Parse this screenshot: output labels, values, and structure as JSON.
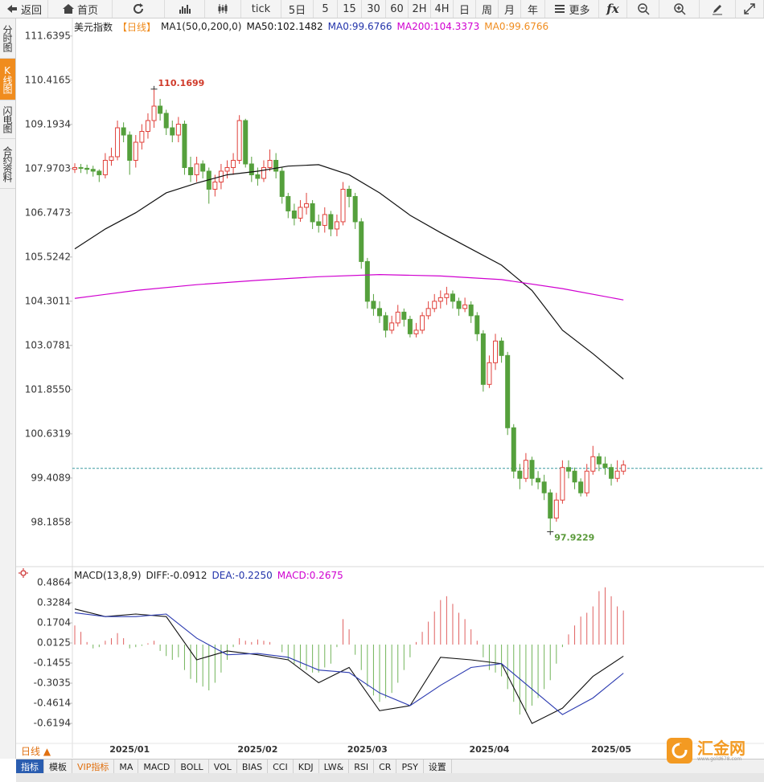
{
  "chart_data": {
    "type": "candlestick",
    "toolbar": [
      "返回",
      "首页",
      "tick",
      "5日",
      "5",
      "15",
      "30",
      "60",
      "2H",
      "4H",
      "日",
      "周",
      "月",
      "年",
      "更多",
      "fx"
    ],
    "side_tabs": [
      "分时图",
      "K线图",
      "闪电图",
      "合约资料"
    ],
    "active_side_tab": 1,
    "legend": [
      {
        "text": "美元指数",
        "color": "#222222"
      },
      {
        "text": "【日线】",
        "color": "#f08c1e"
      },
      {
        "text": "MA1(50,0,200,0)",
        "color": "#222222"
      },
      {
        "text": "MA50:102.1482",
        "color": "#111111"
      },
      {
        "text": "MA0:99.6766",
        "color": "#2233aa"
      },
      {
        "text": "MA200:104.3373",
        "color": "#d000d0"
      },
      {
        "text": "MA0:99.6766",
        "color": "#f08c1e"
      }
    ],
    "ylim": [
      97.07,
      112.08
    ],
    "yticks": [
      111.6395,
      110.4165,
      109.1934,
      107.9703,
      106.7473,
      105.5242,
      104.3011,
      103.0781,
      {
        "value": 101.855,
        "label": "101.8550"
      },
      100.6319,
      99.4089,
      98.1858
    ],
    "up_color": "#e0403a",
    "down_color": "#55a03c",
    "candles": [
      [
        107.95,
        108.12,
        107.85,
        108.0
      ],
      [
        108.0,
        108.1,
        107.85,
        107.98
      ],
      [
        107.98,
        108.08,
        107.82,
        107.95
      ],
      [
        107.95,
        108.05,
        107.75,
        107.9
      ],
      [
        107.9,
        107.95,
        107.6,
        107.8
      ],
      [
        107.8,
        108.4,
        107.7,
        108.2
      ],
      [
        108.2,
        108.55,
        108.05,
        108.3
      ],
      [
        108.3,
        109.3,
        108.2,
        109.1
      ],
      [
        109.1,
        109.25,
        108.7,
        108.9
      ],
      [
        108.9,
        109.0,
        107.8,
        108.2
      ],
      [
        108.2,
        108.9,
        108.0,
        108.7
      ],
      [
        108.7,
        109.2,
        108.5,
        109.0
      ],
      [
        109.0,
        109.5,
        108.8,
        109.3
      ],
      [
        109.3,
        110.1699,
        109.1,
        109.7
      ],
      [
        109.7,
        109.9,
        109.3,
        109.5
      ],
      [
        109.5,
        109.6,
        108.9,
        109.1
      ],
      [
        109.1,
        109.3,
        108.7,
        108.9
      ],
      [
        108.9,
        109.4,
        108.7,
        109.2
      ],
      [
        109.2,
        109.3,
        107.8,
        108.0
      ],
      [
        108.0,
        108.3,
        107.6,
        107.8
      ],
      [
        107.8,
        108.3,
        107.6,
        108.1
      ],
      [
        108.1,
        108.2,
        107.7,
        107.9
      ],
      [
        107.9,
        108.0,
        107.0,
        107.4
      ],
      [
        107.4,
        107.8,
        107.2,
        107.6
      ],
      [
        107.6,
        108.1,
        107.4,
        107.9
      ],
      [
        107.9,
        108.2,
        107.7,
        108.0
      ],
      [
        108.0,
        108.4,
        107.8,
        108.2
      ],
      [
        108.2,
        109.45,
        108.1,
        109.3
      ],
      [
        109.3,
        109.35,
        108.0,
        108.1
      ],
      [
        108.1,
        108.3,
        107.6,
        107.8
      ],
      [
        107.8,
        108.0,
        107.5,
        107.7
      ],
      [
        107.7,
        108.2,
        107.6,
        108.0
      ],
      [
        108.0,
        108.5,
        107.9,
        108.2
      ],
      [
        108.2,
        108.4,
        107.7,
        107.9
      ],
      [
        107.9,
        108.0,
        107.0,
        107.2
      ],
      [
        107.2,
        107.3,
        106.6,
        106.8
      ],
      [
        106.8,
        107.0,
        106.4,
        106.6
      ],
      [
        106.6,
        107.1,
        106.5,
        106.9
      ],
      [
        106.9,
        107.3,
        106.7,
        107.0
      ],
      [
        107.0,
        107.1,
        106.3,
        106.5
      ],
      [
        106.5,
        106.7,
        106.2,
        106.4
      ],
      [
        106.4,
        106.9,
        106.2,
        106.7
      ],
      [
        106.7,
        106.8,
        106.1,
        106.3
      ],
      [
        106.3,
        106.7,
        106.1,
        106.5
      ],
      [
        106.5,
        107.6,
        106.4,
        107.4
      ],
      [
        107.4,
        107.5,
        106.9,
        107.2
      ],
      [
        107.2,
        107.3,
        106.3,
        106.5
      ],
      [
        106.5,
        106.6,
        105.2,
        105.4
      ],
      [
        105.4,
        105.5,
        104.1,
        104.3
      ],
      [
        104.3,
        104.5,
        103.9,
        104.1
      ],
      [
        104.1,
        104.3,
        103.7,
        103.9
      ],
      [
        103.9,
        104.0,
        103.3,
        103.5
      ],
      [
        103.5,
        103.9,
        103.4,
        103.7
      ],
      [
        103.7,
        104.2,
        103.6,
        104.0
      ],
      [
        104.0,
        104.1,
        103.6,
        103.8
      ],
      [
        103.8,
        103.9,
        103.3,
        103.4
      ],
      [
        103.4,
        103.7,
        103.3,
        103.5
      ],
      [
        103.5,
        104.0,
        103.4,
        103.9
      ],
      [
        103.9,
        104.3,
        103.8,
        104.1
      ],
      [
        104.1,
        104.5,
        104.0,
        104.3
      ],
      [
        104.3,
        104.6,
        104.1,
        104.4
      ],
      [
        104.4,
        104.7,
        104.2,
        104.5
      ],
      [
        104.5,
        104.6,
        104.1,
        104.3
      ],
      [
        104.3,
        104.4,
        103.9,
        104.1
      ],
      [
        104.1,
        104.4,
        104.0,
        104.2
      ],
      [
        104.2,
        104.3,
        103.7,
        103.9
      ],
      [
        103.9,
        104.0,
        103.2,
        103.4
      ],
      [
        103.4,
        103.5,
        101.8,
        102.0
      ],
      [
        102.0,
        102.8,
        101.9,
        102.6
      ],
      [
        102.6,
        103.4,
        102.4,
        103.2
      ],
      [
        103.2,
        103.3,
        102.6,
        102.8
      ],
      [
        102.8,
        102.9,
        100.6,
        100.8
      ],
      [
        100.8,
        100.9,
        99.4,
        99.6
      ],
      [
        99.6,
        99.8,
        99.1,
        99.4
      ],
      [
        99.4,
        100.1,
        99.3,
        99.9
      ],
      [
        99.9,
        100.0,
        99.2,
        99.4
      ],
      [
        99.4,
        99.6,
        99.1,
        99.3
      ],
      [
        99.3,
        99.5,
        98.8,
        99.0
      ],
      [
        99.0,
        99.1,
        97.9229,
        98.3
      ],
      [
        98.3,
        99.0,
        98.2,
        98.8
      ],
      [
        98.8,
        99.9,
        98.7,
        99.7
      ],
      [
        99.7,
        99.9,
        99.4,
        99.6
      ],
      [
        99.6,
        99.7,
        99.1,
        99.3
      ],
      [
        99.3,
        99.4,
        98.9,
        99.0
      ],
      [
        99.0,
        99.8,
        98.9,
        99.6
      ],
      [
        99.6,
        100.3,
        99.5,
        100.0
      ],
      [
        100.0,
        100.1,
        99.6,
        99.8
      ],
      [
        99.8,
        100.0,
        99.5,
        99.7
      ],
      [
        99.7,
        99.8,
        99.2,
        99.4
      ],
      [
        99.4,
        99.9,
        99.3,
        99.6
      ],
      [
        99.6,
        99.9,
        99.5,
        99.77
      ]
    ],
    "lines": [
      {
        "color": "#111111",
        "x": [
          0,
          5,
          10,
          15,
          20,
          25,
          30,
          35,
          40,
          45,
          50,
          55,
          60,
          65,
          70,
          75,
          80,
          85,
          90
        ],
        "values": [
          105.75,
          106.3,
          106.75,
          107.3,
          107.57,
          107.8,
          107.9,
          108.04,
          108.08,
          107.8,
          107.3,
          106.68,
          106.2,
          105.75,
          105.3,
          104.6,
          103.5,
          102.85,
          102.1482
        ]
      },
      {
        "color": "#d000d0",
        "x": [
          0,
          10,
          20,
          30,
          40,
          50,
          60,
          70,
          80,
          90
        ],
        "values": [
          104.38,
          104.6,
          104.76,
          104.88,
          104.98,
          105.04,
          105.0,
          104.9,
          104.65,
          104.3373
        ]
      }
    ],
    "last_price": 99.6766,
    "last_price_color": "#3a9aa0",
    "high_label_index": 13,
    "low_label_index": 78,
    "macd": {
      "legend": [
        {
          "text": "MACD(13,8,9)",
          "color": "#222222"
        },
        {
          "text": "DIFF:-0.0912",
          "color": "#222222"
        },
        {
          "text": "DEA:-0.2250",
          "color": "#2233aa"
        },
        {
          "text": "MACD:0.2675",
          "color": "#d000d0"
        }
      ],
      "ylim": [
        -0.777,
        0.518
      ],
      "yticks": [
        0.4864,
        0.3284,
        0.1704,
        0.0125,
        -0.1455,
        -0.3035,
        -0.4614,
        -0.6194
      ],
      "hist_up_color": "#e06060",
      "hist_down_color": "#72b45a",
      "hist": [
        0.15,
        0.1,
        0.02,
        -0.03,
        -0.02,
        0.03,
        0.05,
        0.09,
        0.05,
        -0.03,
        -0.02,
        -0.01,
        0.01,
        0.03,
        -0.05,
        -0.09,
        -0.12,
        -0.1,
        -0.2,
        -0.27,
        -0.3,
        -0.33,
        -0.36,
        -0.3,
        -0.22,
        -0.12,
        -0.02,
        0.05,
        0.03,
        0.02,
        0.04,
        0.03,
        0.02,
        0.0,
        -0.06,
        -0.12,
        -0.15,
        -0.18,
        -0.2,
        -0.22,
        -0.22,
        -0.18,
        -0.15,
        -0.02,
        0.2,
        0.12,
        -0.08,
        -0.2,
        -0.33,
        -0.4,
        -0.45,
        -0.42,
        -0.38,
        -0.3,
        -0.2,
        -0.1,
        0.02,
        0.1,
        0.18,
        0.26,
        0.35,
        0.38,
        0.32,
        0.25,
        0.2,
        0.12,
        0.03,
        -0.1,
        -0.2,
        -0.22,
        -0.25,
        -0.35,
        -0.45,
        -0.55,
        -0.52,
        -0.48,
        -0.42,
        -0.35,
        -0.28,
        -0.15,
        -0.02,
        0.08,
        0.15,
        0.22,
        0.25,
        0.3,
        0.42,
        0.45,
        0.38,
        0.3,
        0.2675
      ],
      "x": [
        0,
        5,
        10,
        15,
        20,
        25,
        30,
        35,
        40,
        45,
        50,
        55,
        60,
        65,
        70,
        75,
        80,
        85,
        90
      ],
      "diff": {
        "color": "#111111",
        "values": [
          0.28,
          0.22,
          0.24,
          0.22,
          -0.12,
          -0.05,
          -0.08,
          -0.12,
          -0.3,
          -0.18,
          -0.52,
          -0.48,
          -0.1,
          -0.12,
          -0.15,
          -0.62,
          -0.5,
          -0.25,
          -0.0912
        ]
      },
      "dea": {
        "color": "#2b3ab0",
        "values": [
          0.25,
          0.22,
          0.22,
          0.24,
          0.05,
          -0.08,
          -0.07,
          -0.1,
          -0.2,
          -0.22,
          -0.38,
          -0.48,
          -0.32,
          -0.18,
          -0.15,
          -0.35,
          -0.55,
          -0.42,
          -0.225
        ]
      }
    },
    "x_labels": [
      "2025/01",
      "2025/02",
      "2025/03",
      "2025/04",
      "2025/05"
    ],
    "period_label": "日线 ▲",
    "bottom_tabs": [
      "指标",
      "模板",
      "VIP指标",
      "MA",
      "MACD",
      "BOLL",
      "VOL",
      "BIAS",
      "CCI",
      "KDJ",
      "LW&",
      "RSI",
      "CR",
      "PSY",
      "设置"
    ],
    "active_bottom_tab": 0,
    "logo": {
      "name": "汇金网",
      "url": "www.gold678.com"
    }
  }
}
